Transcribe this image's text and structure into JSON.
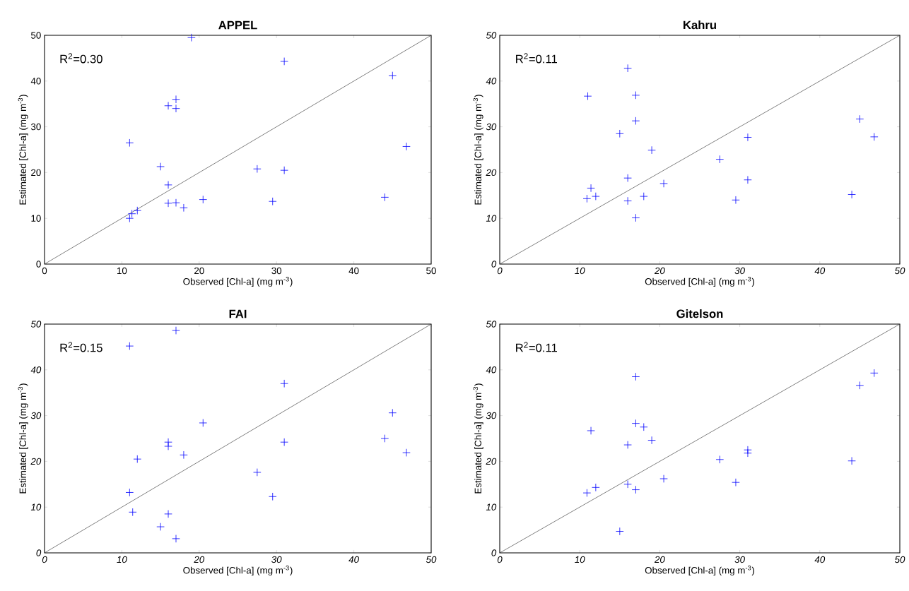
{
  "chart_data": [
    {
      "type": "scatter",
      "title": "APPEL",
      "xlabel": "Observed [Chl-a] (mg m$^{-3}$)",
      "ylabel": "Estimated [Chl-a] (mg m$^{-3}$)",
      "annotations": [
        "R$^{2}$=0.30"
      ],
      "xlim": [
        0,
        50
      ],
      "ylim": [
        0,
        50
      ],
      "xticks": [
        0,
        10,
        20,
        30,
        40,
        50
      ],
      "yticks": [
        0,
        10,
        20,
        30,
        40,
        50
      ],
      "marker": "cross",
      "series": [
        {
          "color": "#0000ff",
          "x": [
            19,
            31,
            45,
            16,
            17,
            17,
            11,
            15,
            27.5,
            31,
            46.8,
            16,
            16,
            17,
            18,
            20.5,
            29.5,
            44,
            11,
            11.3,
            12
          ],
          "values": [
            49.5,
            44.3,
            41.2,
            34.6,
            36,
            34,
            26.5,
            21.3,
            20.8,
            20.5,
            25.7,
            17.3,
            13.3,
            13.4,
            12.3,
            14.1,
            13.7,
            14.6,
            10,
            11,
            11.7
          ]
        },
        {
          "type": "line",
          "marker": "none",
          "color": "#404040",
          "x": [
            0,
            50
          ],
          "values": [
            0,
            50
          ]
        }
      ]
    },
    {
      "type": "scatter",
      "title": "Kahru",
      "xlabel": "Observed [Chl-a] (mg m$^{-3}$)",
      "ylabel": "Estimated [Chl-a] (mg m$^{-3}$)",
      "annotations": [
        "R$^{2}$=0.11"
      ],
      "xlim": [
        0,
        50
      ],
      "ylim": [
        0,
        50
      ],
      "xticks": [
        0,
        10,
        20,
        30,
        40,
        50
      ],
      "yticks": [
        0,
        10,
        20,
        30,
        40,
        50
      ],
      "marker": "cross",
      "series": [
        {
          "color": "#0000ff",
          "x": [
            16,
            11,
            17,
            17,
            15,
            19,
            27.5,
            31,
            45,
            46.8,
            16,
            11.4,
            10.9,
            12,
            20.5,
            16,
            18,
            17,
            29.5,
            31,
            44
          ],
          "values": [
            42.8,
            36.7,
            36.9,
            31.3,
            28.5,
            24.9,
            22.9,
            27.7,
            31.7,
            27.8,
            18.8,
            16.6,
            14.3,
            14.8,
            17.6,
            13.8,
            14.8,
            10.1,
            14,
            18.4,
            15.2
          ]
        },
        {
          "type": "line",
          "marker": "none",
          "color": "#404040",
          "x": [
            0,
            50
          ],
          "values": [
            0,
            50
          ]
        }
      ]
    },
    {
      "type": "scatter",
      "title": "FAI",
      "xlabel": "Observed [Chl-a] (mg m$^{-3}$)",
      "ylabel": "Estimated [Chl-a] (mg m$^{-3}$)",
      "annotations": [
        "R$^{2}$=0.15"
      ],
      "xlim": [
        0,
        50
      ],
      "ylim": [
        0,
        50
      ],
      "xticks": [
        0,
        10,
        20,
        30,
        40,
        50
      ],
      "yticks": [
        0,
        10,
        20,
        30,
        40,
        50
      ],
      "marker": "cross",
      "series": [
        {
          "color": "#0000ff",
          "x": [
            17,
            11,
            31,
            45,
            44,
            46.8,
            20.5,
            16,
            16,
            18,
            12,
            31,
            27.5,
            11,
            29.5,
            11.4,
            16,
            15,
            17
          ],
          "values": [
            48.6,
            45.2,
            37,
            30.6,
            25,
            21.9,
            28.4,
            24.2,
            23.3,
            21.4,
            20.5,
            24.2,
            17.6,
            13.2,
            12.3,
            8.9,
            8.5,
            5.7,
            3.1
          ]
        },
        {
          "type": "line",
          "marker": "none",
          "color": "#404040",
          "x": [
            0,
            50
          ],
          "values": [
            0,
            50
          ]
        }
      ]
    },
    {
      "type": "scatter",
      "title": "Gitelson",
      "xlabel": "Observed [Chl-a] (mg m$^{-3}$)",
      "ylabel": "Estimated [Chl-a] (mg m$^{-3}$)",
      "annotations": [
        "R$^{2}$=0.11"
      ],
      "xlim": [
        0,
        50
      ],
      "ylim": [
        0,
        50
      ],
      "xticks": [
        0,
        10,
        20,
        30,
        40,
        50
      ],
      "yticks": [
        0,
        10,
        20,
        30,
        40,
        50
      ],
      "marker": "cross",
      "series": [
        {
          "color": "#0000ff",
          "x": [
            17,
            46.8,
            45,
            11.4,
            17,
            18,
            19,
            16,
            27.5,
            31,
            31,
            44,
            20.5,
            29.5,
            16,
            17,
            12,
            10.9,
            15
          ],
          "values": [
            38.5,
            39.3,
            36.6,
            26.7,
            28.3,
            27.5,
            24.6,
            23.6,
            20.4,
            22.5,
            21.8,
            20.1,
            16.2,
            15.4,
            15,
            13.8,
            14.3,
            13.1,
            4.7
          ]
        },
        {
          "type": "line",
          "marker": "none",
          "color": "#404040",
          "x": [
            0,
            50
          ],
          "values": [
            0,
            50
          ]
        }
      ]
    }
  ]
}
